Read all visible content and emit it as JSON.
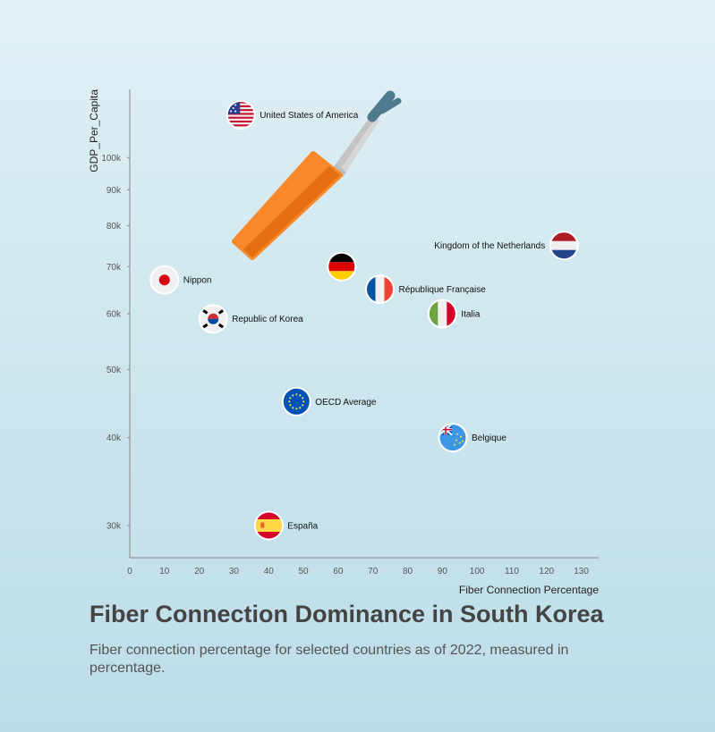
{
  "title": "Fiber Connection Dominance in South Korea",
  "subtitle": "Fiber connection percentage for selected countries as of 2022, measured in percentage.",
  "chart_data": {
    "type": "scatter",
    "title": "Fiber Connection Dominance in South Korea",
    "subtitle": "Fiber connection percentage for selected countries as of 2022, measured in percentage.",
    "xlabel": "Fiber Connection Percentage",
    "ylabel": "GDP_Per_Capita",
    "xlim": [
      0,
      135
    ],
    "ylim": [
      27000,
      125000
    ],
    "yscale": "log",
    "grid": false,
    "legend": "none",
    "x_ticks": [
      0,
      10,
      20,
      30,
      40,
      50,
      60,
      70,
      80,
      90,
      100,
      110,
      120,
      130
    ],
    "y_ticks": [
      {
        "value": 30000,
        "label": "30k"
      },
      {
        "value": 40000,
        "label": "40k"
      },
      {
        "value": 50000,
        "label": "50k"
      },
      {
        "value": 60000,
        "label": "60k"
      },
      {
        "value": 70000,
        "label": "70k"
      },
      {
        "value": 80000,
        "label": "80k"
      },
      {
        "value": 90000,
        "label": "90k"
      },
      {
        "value": 100000,
        "label": "100k"
      }
    ],
    "points": [
      {
        "label": "United States of America",
        "flag": "usa",
        "x": 32,
        "y": 115000,
        "label_side": "right"
      },
      {
        "label": "Kingdom of the Netherlands",
        "flag": "netherlands",
        "x": 125,
        "y": 75000,
        "label_side": "left"
      },
      {
        "label": "",
        "flag": "germany",
        "x": 61,
        "y": 70000,
        "label_side": "right"
      },
      {
        "label": "Nippon",
        "flag": "japan",
        "x": 10,
        "y": 67000,
        "label_side": "right"
      },
      {
        "label": "République Française",
        "flag": "france",
        "x": 72,
        "y": 65000,
        "label_side": "right"
      },
      {
        "label": "Italia",
        "flag": "italy",
        "x": 90,
        "y": 60000,
        "label_side": "right"
      },
      {
        "label": "Republic of Korea",
        "flag": "korea",
        "x": 24,
        "y": 59000,
        "label_side": "right"
      },
      {
        "label": "OECD Average",
        "flag": "eu",
        "x": 48,
        "y": 45000,
        "label_side": "right"
      },
      {
        "label": "Belgique",
        "flag": "tuvalu",
        "x": 93,
        "y": 40000,
        "label_side": "right"
      },
      {
        "label": "España",
        "flag": "spain",
        "x": 40,
        "y": 30000,
        "label_side": "right"
      }
    ]
  },
  "decoration": {
    "icon": "fiber-cable-stripper-icon",
    "colors": {
      "handle": "#f7892a",
      "handle_dark": "#e36f10",
      "blade": "#d6d6d6",
      "tip": "#4f7a8e"
    }
  }
}
